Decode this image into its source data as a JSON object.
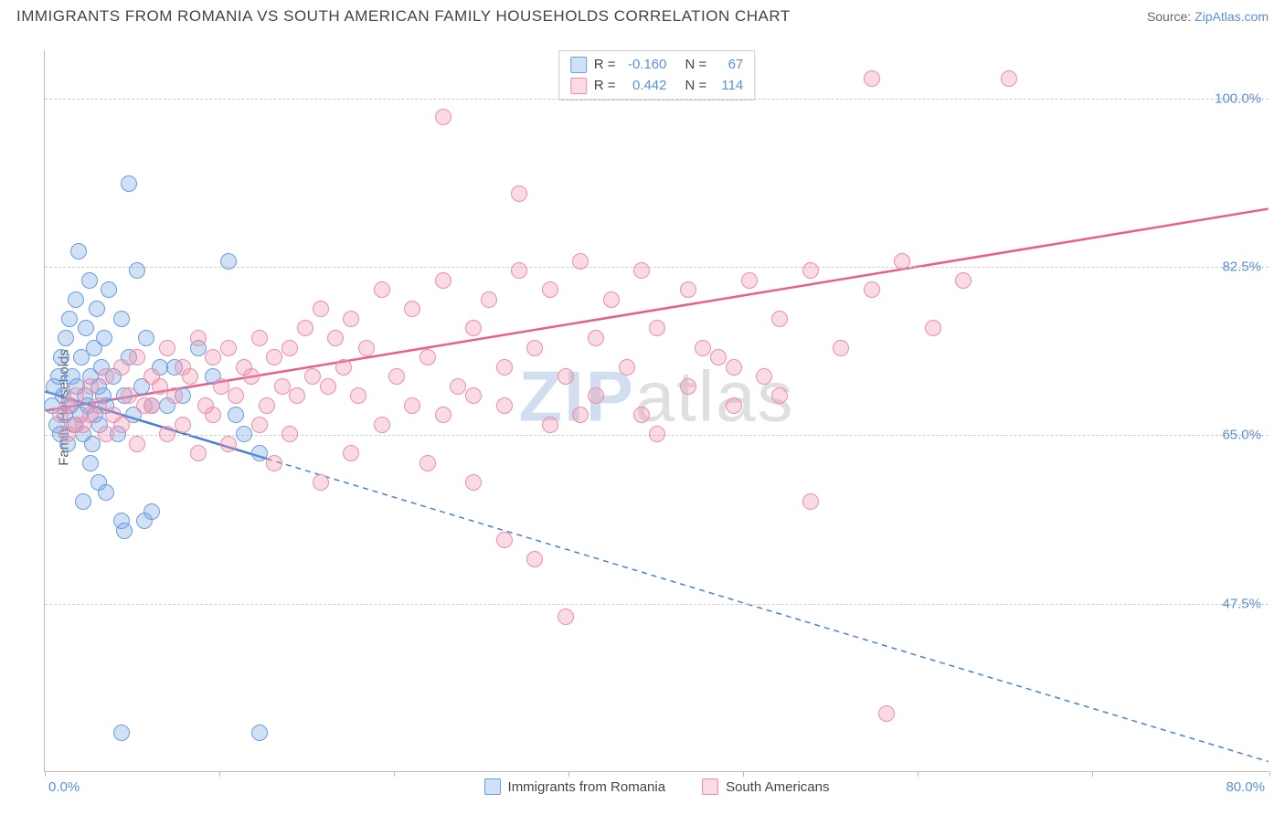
{
  "title": "IMMIGRANTS FROM ROMANIA VS SOUTH AMERICAN FAMILY HOUSEHOLDS CORRELATION CHART",
  "source_prefix": "Source: ",
  "source_link": "ZipAtlas.com",
  "watermark_a": "ZIP",
  "watermark_b": "atlas",
  "chart": {
    "type": "scatter",
    "ylabel": "Family Households",
    "xlim": [
      0,
      80
    ],
    "ylim": [
      30,
      105
    ],
    "x_start_label": "0.0%",
    "x_end_label": "80.0%",
    "x_ticks": [
      0,
      11.4,
      22.8,
      34.2,
      45.6,
      57.0,
      68.4,
      80.0
    ],
    "y_gridlines": [
      {
        "value": 47.5,
        "label": "47.5%"
      },
      {
        "value": 65.0,
        "label": "65.0%"
      },
      {
        "value": 82.5,
        "label": "82.5%"
      },
      {
        "value": 100.0,
        "label": "100.0%"
      }
    ],
    "background_color": "#ffffff",
    "grid_color": "#cccccc",
    "axis_label_color": "#5b8fd6",
    "series": [
      {
        "name": "Immigrants from Romania",
        "fill_color": "rgba(120,165,225,0.35)",
        "stroke_color": "#6a9de0",
        "trend_color": "#4a7fd0",
        "R": "-0.160",
        "N": "67",
        "trend": {
          "x1": 0,
          "y1": 69.5,
          "x2": 14.5,
          "y2": 62.5,
          "x2_ext": 80,
          "y2_ext": 31
        },
        "points": [
          [
            0.5,
            68
          ],
          [
            0.6,
            70
          ],
          [
            0.8,
            66
          ],
          [
            0.9,
            71
          ],
          [
            1.0,
            65
          ],
          [
            1.1,
            73
          ],
          [
            1.2,
            69
          ],
          [
            1.3,
            67
          ],
          [
            1.4,
            75
          ],
          [
            1.5,
            64
          ],
          [
            1.6,
            77
          ],
          [
            1.7,
            68
          ],
          [
            1.8,
            71
          ],
          [
            1.9,
            66
          ],
          [
            2.0,
            79
          ],
          [
            2.1,
            70
          ],
          [
            2.2,
            84
          ],
          [
            2.3,
            67
          ],
          [
            2.4,
            73
          ],
          [
            2.5,
            65
          ],
          [
            2.6,
            69
          ],
          [
            2.7,
            76
          ],
          [
            2.8,
            68
          ],
          [
            2.9,
            81
          ],
          [
            3.0,
            71
          ],
          [
            3.1,
            64
          ],
          [
            3.2,
            74
          ],
          [
            3.3,
            67
          ],
          [
            3.4,
            78
          ],
          [
            3.5,
            70
          ],
          [
            3.6,
            66
          ],
          [
            3.7,
            72
          ],
          [
            3.8,
            69
          ],
          [
            3.9,
            75
          ],
          [
            4.0,
            68
          ],
          [
            4.2,
            80
          ],
          [
            4.5,
            71
          ],
          [
            4.8,
            65
          ],
          [
            5.0,
            77
          ],
          [
            5.2,
            69
          ],
          [
            5.5,
            73
          ],
          [
            5.8,
            67
          ],
          [
            6.0,
            82
          ],
          [
            6.3,
            70
          ],
          [
            6.6,
            75
          ],
          [
            7.0,
            68
          ],
          [
            7.5,
            72
          ],
          [
            5.5,
            91
          ],
          [
            5.0,
            56
          ],
          [
            5.2,
            55
          ],
          [
            2.5,
            58
          ],
          [
            3.0,
            62
          ],
          [
            3.5,
            60
          ],
          [
            4.0,
            59
          ],
          [
            6.5,
            56
          ],
          [
            7.0,
            57
          ],
          [
            5.0,
            34
          ],
          [
            14.0,
            34
          ],
          [
            12.0,
            83
          ],
          [
            12.5,
            67
          ],
          [
            14.0,
            63
          ],
          [
            11.0,
            71
          ],
          [
            13.0,
            65
          ],
          [
            10.0,
            74
          ],
          [
            9.0,
            69
          ],
          [
            8.5,
            72
          ],
          [
            8.0,
            68
          ]
        ]
      },
      {
        "name": "South Americans",
        "fill_color": "rgba(240,150,175,0.35)",
        "stroke_color": "#ec8fa8",
        "trend_color": "#e85f8a",
        "R": "0.442",
        "N": "114",
        "trend": {
          "x1": 0,
          "y1": 67.5,
          "x2": 80,
          "y2": 88.5
        },
        "points": [
          [
            1.0,
            67
          ],
          [
            1.5,
            68
          ],
          [
            2.0,
            69
          ],
          [
            2.5,
            66
          ],
          [
            3.0,
            70
          ],
          [
            3.5,
            68
          ],
          [
            4.0,
            71
          ],
          [
            4.5,
            67
          ],
          [
            5.0,
            72
          ],
          [
            5.5,
            69
          ],
          [
            6.0,
            73
          ],
          [
            6.5,
            68
          ],
          [
            7.0,
            71
          ],
          [
            7.5,
            70
          ],
          [
            8.0,
            74
          ],
          [
            8.5,
            69
          ],
          [
            9.0,
            72
          ],
          [
            9.5,
            71
          ],
          [
            10.0,
            75
          ],
          [
            10.5,
            68
          ],
          [
            11.0,
            73
          ],
          [
            11.5,
            70
          ],
          [
            12.0,
            74
          ],
          [
            12.5,
            69
          ],
          [
            13.0,
            72
          ],
          [
            13.5,
            71
          ],
          [
            14.0,
            75
          ],
          [
            14.5,
            68
          ],
          [
            15.0,
            73
          ],
          [
            15.5,
            70
          ],
          [
            16.0,
            74
          ],
          [
            16.5,
            69
          ],
          [
            17.0,
            76
          ],
          [
            17.5,
            71
          ],
          [
            18.0,
            78
          ],
          [
            18.5,
            70
          ],
          [
            19.0,
            75
          ],
          [
            19.5,
            72
          ],
          [
            20.0,
            77
          ],
          [
            20.5,
            69
          ],
          [
            21.0,
            74
          ],
          [
            22.0,
            80
          ],
          [
            23.0,
            71
          ],
          [
            24.0,
            78
          ],
          [
            25.0,
            73
          ],
          [
            26.0,
            81
          ],
          [
            27.0,
            70
          ],
          [
            28.0,
            76
          ],
          [
            29.0,
            79
          ],
          [
            30.0,
            72
          ],
          [
            31.0,
            82
          ],
          [
            32.0,
            74
          ],
          [
            33.0,
            80
          ],
          [
            34.0,
            71
          ],
          [
            35.0,
            83
          ],
          [
            36.0,
            75
          ],
          [
            37.0,
            79
          ],
          [
            38.0,
            72
          ],
          [
            39.0,
            82
          ],
          [
            40.0,
            76
          ],
          [
            42.0,
            80
          ],
          [
            44.0,
            73
          ],
          [
            46.0,
            81
          ],
          [
            48.0,
            77
          ],
          [
            50.0,
            82
          ],
          [
            52.0,
            74
          ],
          [
            54.0,
            80
          ],
          [
            56.0,
            83
          ],
          [
            58.0,
            76
          ],
          [
            60.0,
            81
          ],
          [
            31.0,
            90
          ],
          [
            26.0,
            98
          ],
          [
            54.0,
            102
          ],
          [
            63.0,
            102
          ],
          [
            34.0,
            46
          ],
          [
            28.0,
            60
          ],
          [
            25.0,
            62
          ],
          [
            20.0,
            63
          ],
          [
            18.0,
            60
          ],
          [
            15.0,
            62
          ],
          [
            12.0,
            64
          ],
          [
            10.0,
            63
          ],
          [
            8.0,
            65
          ],
          [
            6.0,
            64
          ],
          [
            5.0,
            66
          ],
          [
            4.0,
            65
          ],
          [
            3.0,
            67
          ],
          [
            2.0,
            66
          ],
          [
            1.5,
            65
          ],
          [
            35.0,
            67
          ],
          [
            40.0,
            65
          ],
          [
            45.0,
            68
          ],
          [
            50.0,
            58
          ],
          [
            32.0,
            52
          ],
          [
            30.0,
            54
          ],
          [
            22.0,
            66
          ],
          [
            24.0,
            68
          ],
          [
            26.0,
            67
          ],
          [
            28.0,
            69
          ],
          [
            30.0,
            68
          ],
          [
            33.0,
            66
          ],
          [
            36.0,
            69
          ],
          [
            39.0,
            67
          ],
          [
            42.0,
            70
          ],
          [
            45.0,
            72
          ],
          [
            48.0,
            69
          ],
          [
            16.0,
            65
          ],
          [
            14.0,
            66
          ],
          [
            11.0,
            67
          ],
          [
            9.0,
            66
          ],
          [
            7.0,
            68
          ],
          [
            55.0,
            36
          ],
          [
            47.0,
            71
          ],
          [
            43.0,
            74
          ]
        ]
      }
    ]
  }
}
